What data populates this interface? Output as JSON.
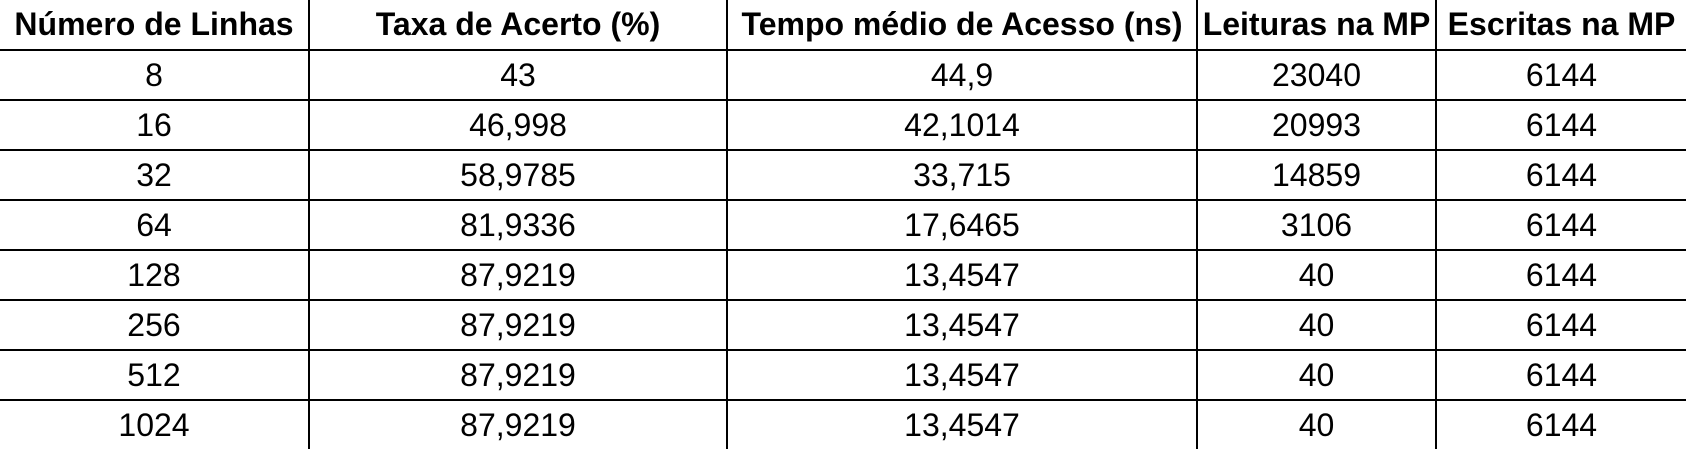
{
  "table": {
    "headers": [
      "Número de Linhas",
      "Taxa de Acerto (%)",
      "Tempo médio de Acesso (ns)",
      "Leituras na MP",
      "Escritas na MP"
    ],
    "rows": [
      [
        "8",
        "43",
        "44,9",
        "23040",
        "6144"
      ],
      [
        "16",
        "46,998",
        "42,1014",
        "20993",
        "6144"
      ],
      [
        "32",
        "58,9785",
        "33,715",
        "14859",
        "6144"
      ],
      [
        "64",
        "81,9336",
        "17,6465",
        "3106",
        "6144"
      ],
      [
        "128",
        "87,9219",
        "13,4547",
        "40",
        "6144"
      ],
      [
        "256",
        "87,9219",
        "13,4547",
        "40",
        "6144"
      ],
      [
        "512",
        "87,9219",
        "13,4547",
        "40",
        "6144"
      ],
      [
        "1024",
        "87,9219",
        "13,4547",
        "40",
        "6144"
      ]
    ]
  }
}
